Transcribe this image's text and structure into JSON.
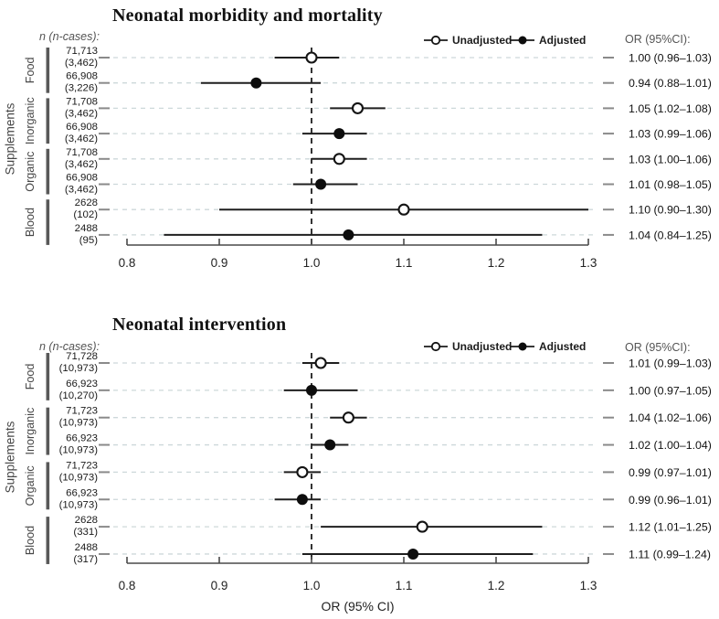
{
  "legend": {
    "unadjusted": "Unadjusted",
    "adjusted": "Adjusted"
  },
  "right_header": "OR (95%CI):",
  "left_header": "n (n-cases):",
  "colors": {
    "grid": "#cdd8da",
    "end_dash": "#8a8a8a",
    "ci_line": "#1f1f1f",
    "axis": "#4a4a4a",
    "reference": "#111111",
    "marker_fill": "#0d0d0d",
    "marker_open_fill": "#ffffff",
    "group_bar": "#595959"
  },
  "chart_data": [
    {
      "type": "forest",
      "title": "Neonatal morbidity and mortality",
      "side_label": "Supplements",
      "xlabel": "",
      "xlim": [
        0.8,
        1.3
      ],
      "x_tick_values": [
        0.8,
        0.9,
        1.0,
        1.1,
        1.2,
        1.3
      ],
      "x_tick_labels": [
        "0.8",
        "0.9",
        "1.0",
        "1.1",
        "1.2",
        "1.3"
      ],
      "reference_line": 1.0,
      "groups": [
        {
          "label": "Food",
          "rows": [
            0,
            1
          ]
        },
        {
          "label": "Inorganic",
          "rows": [
            2,
            3
          ]
        },
        {
          "label": "Organic",
          "rows": [
            4,
            5
          ]
        },
        {
          "label": "Blood",
          "rows": [
            6,
            7
          ]
        }
      ],
      "rows": [
        {
          "n": "71,713",
          "cases": "(3,462)",
          "series": "Unadjusted",
          "or": 1.0,
          "ci_low": 0.96,
          "ci_high": 1.03,
          "label": "1.00 (0.96–1.03)"
        },
        {
          "n": "66,908",
          "cases": "(3,226)",
          "series": "Adjusted",
          "or": 0.94,
          "ci_low": 0.88,
          "ci_high": 1.01,
          "label": "0.94 (0.88–1.01)"
        },
        {
          "n": "71,708",
          "cases": "(3,462)",
          "series": "Unadjusted",
          "or": 1.05,
          "ci_low": 1.02,
          "ci_high": 1.08,
          "label": "1.05 (1.02–1.08)"
        },
        {
          "n": "66,908",
          "cases": "(3,462)",
          "series": "Adjusted",
          "or": 1.03,
          "ci_low": 0.99,
          "ci_high": 1.06,
          "label": "1.03 (0.99–1.06)"
        },
        {
          "n": "71,708",
          "cases": "(3,462)",
          "series": "Unadjusted",
          "or": 1.03,
          "ci_low": 1.0,
          "ci_high": 1.06,
          "label": "1.03 (1.00–1.06)"
        },
        {
          "n": "66,908",
          "cases": "(3,462)",
          "series": "Adjusted",
          "or": 1.01,
          "ci_low": 0.98,
          "ci_high": 1.05,
          "label": "1.01 (0.98–1.05)"
        },
        {
          "n": "2628",
          "cases": "(102)",
          "series": "Unadjusted",
          "or": 1.1,
          "ci_low": 0.9,
          "ci_high": 1.3,
          "label": "1.10 (0.90–1.30)"
        },
        {
          "n": "2488",
          "cases": "(95)",
          "series": "Adjusted",
          "or": 1.04,
          "ci_low": 0.84,
          "ci_high": 1.25,
          "label": "1.04 (0.84–1.25)"
        }
      ]
    },
    {
      "type": "forest",
      "title": "Neonatal intervention",
      "side_label": "Supplements",
      "xlabel": "OR (95% CI)",
      "xlim": [
        0.8,
        1.3
      ],
      "x_tick_values": [
        0.8,
        0.9,
        1.0,
        1.1,
        1.2,
        1.3
      ],
      "x_tick_labels": [
        "0.8",
        "0.9",
        "1.0",
        "1.1",
        "1.2",
        "1.3"
      ],
      "reference_line": 1.0,
      "groups": [
        {
          "label": "Food",
          "rows": [
            0,
            1
          ]
        },
        {
          "label": "Inorganic",
          "rows": [
            2,
            3
          ]
        },
        {
          "label": "Organic",
          "rows": [
            4,
            5
          ]
        },
        {
          "label": "Blood",
          "rows": [
            6,
            7
          ]
        }
      ],
      "rows": [
        {
          "n": "71,728",
          "cases": "(10,973)",
          "series": "Unadjusted",
          "or": 1.01,
          "ci_low": 0.99,
          "ci_high": 1.03,
          "label": "1.01 (0.99–1.03)"
        },
        {
          "n": "66,923",
          "cases": "(10,270)",
          "series": "Adjusted",
          "or": 1.0,
          "ci_low": 0.97,
          "ci_high": 1.05,
          "label": "1.00 (0.97–1.05)"
        },
        {
          "n": "71,723",
          "cases": "(10,973)",
          "series": "Unadjusted",
          "or": 1.04,
          "ci_low": 1.02,
          "ci_high": 1.06,
          "label": "1.04 (1.02–1.06)"
        },
        {
          "n": "66,923",
          "cases": "(10,973)",
          "series": "Adjusted",
          "or": 1.02,
          "ci_low": 1.0,
          "ci_high": 1.04,
          "label": "1.02 (1.00–1.04)"
        },
        {
          "n": "71,723",
          "cases": "(10,973)",
          "series": "Unadjusted",
          "or": 0.99,
          "ci_low": 0.97,
          "ci_high": 1.01,
          "label": "0.99 (0.97–1.01)"
        },
        {
          "n": "66,923",
          "cases": "(10,973)",
          "series": "Adjusted",
          "or": 0.99,
          "ci_low": 0.96,
          "ci_high": 1.01,
          "label": "0.99 (0.96–1.01)"
        },
        {
          "n": "2628",
          "cases": "(331)",
          "series": "Unadjusted",
          "or": 1.12,
          "ci_low": 1.01,
          "ci_high": 1.25,
          "label": "1.12 (1.01–1.25)"
        },
        {
          "n": "2488",
          "cases": "(317)",
          "series": "Adjusted",
          "or": 1.11,
          "ci_low": 0.99,
          "ci_high": 1.24,
          "label": "1.11 (0.99–1.24)"
        }
      ]
    }
  ]
}
